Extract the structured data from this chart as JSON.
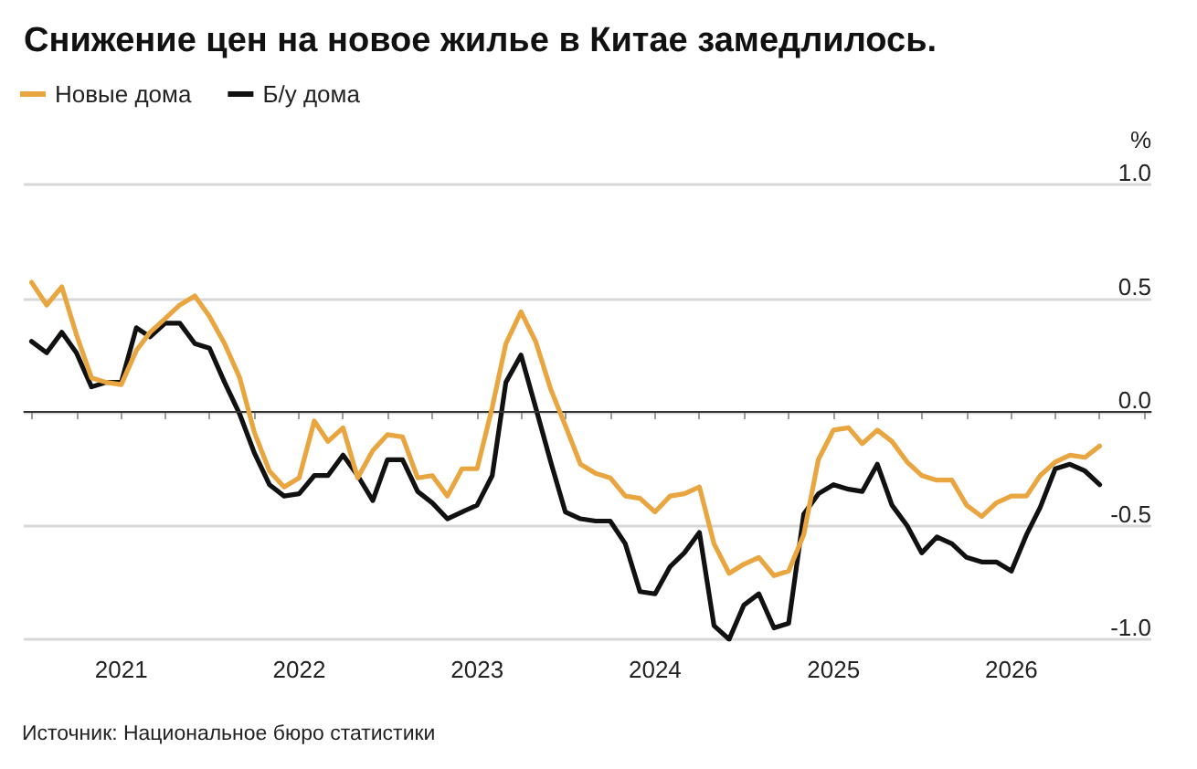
{
  "chart_data": {
    "type": "line",
    "title": "Снижение цен на новое жилье в Китае замедлилось.",
    "ylabel": "%",
    "x": [
      "2020-07",
      "2020-08",
      "2020-09",
      "2020-10",
      "2020-11",
      "2020-12",
      "2021-01",
      "2021-02",
      "2021-03",
      "2021-04",
      "2021-05",
      "2021-06",
      "2021-07",
      "2021-08",
      "2021-09",
      "2021-10",
      "2021-11",
      "2021-12",
      "2022-01",
      "2022-02",
      "2022-03",
      "2022-04",
      "2022-05",
      "2022-06",
      "2022-07",
      "2022-08",
      "2022-09",
      "2022-10",
      "2022-11",
      "2022-12",
      "2023-01",
      "2023-02",
      "2023-03",
      "2023-04",
      "2023-05",
      "2023-06",
      "2023-07",
      "2023-08",
      "2023-09",
      "2023-10",
      "2023-11",
      "2023-12",
      "2024-01",
      "2024-02",
      "2024-03",
      "2024-04",
      "2024-05",
      "2024-06",
      "2024-07",
      "2024-08",
      "2024-09",
      "2024-10",
      "2024-11",
      "2024-12",
      "2025-01",
      "2025-02",
      "2025-03",
      "2025-04",
      "2025-05",
      "2025-06",
      "2025-07",
      "2025-08",
      "2025-09",
      "2025-10",
      "2025-11",
      "2025-12",
      "2026-01",
      "2026-02",
      "2026-03",
      "2026-04",
      "2026-05",
      "2026-06",
      "2026-07"
    ],
    "series": [
      {
        "name": "Новые дома",
        "color": "#e9a640",
        "values": [
          0.57,
          0.47,
          0.55,
          0.34,
          0.15,
          0.13,
          0.12,
          0.27,
          0.35,
          0.41,
          0.47,
          0.51,
          0.42,
          0.3,
          0.15,
          -0.09,
          -0.26,
          -0.33,
          -0.29,
          -0.04,
          -0.13,
          -0.07,
          -0.29,
          -0.17,
          -0.1,
          -0.11,
          -0.29,
          -0.28,
          -0.37,
          -0.25,
          -0.25,
          0.02,
          0.3,
          0.44,
          0.31,
          0.1,
          -0.06,
          -0.23,
          -0.27,
          -0.29,
          -0.37,
          -0.38,
          -0.44,
          -0.37,
          -0.36,
          -0.33,
          -0.58,
          -0.71,
          -0.67,
          -0.64,
          -0.72,
          -0.7,
          -0.54,
          -0.21,
          -0.08,
          -0.07,
          -0.14,
          -0.08,
          -0.13,
          -0.22,
          -0.28,
          -0.3,
          -0.3,
          -0.41,
          -0.46,
          -0.4,
          -0.37,
          -0.37,
          -0.28,
          -0.22,
          -0.19,
          -0.2,
          -0.15
        ]
      },
      {
        "name": "Б/у дома",
        "color": "#111111",
        "values": [
          0.31,
          0.26,
          0.35,
          0.26,
          0.11,
          0.13,
          0.13,
          0.37,
          0.33,
          0.39,
          0.39,
          0.3,
          0.28,
          0.13,
          -0.01,
          -0.18,
          -0.32,
          -0.37,
          -0.36,
          -0.28,
          -0.28,
          -0.19,
          -0.28,
          -0.39,
          -0.21,
          -0.21,
          -0.35,
          -0.4,
          -0.47,
          -0.44,
          -0.41,
          -0.28,
          0.13,
          0.25,
          0.02,
          -0.22,
          -0.44,
          -0.47,
          -0.48,
          -0.48,
          -0.58,
          -0.79,
          -0.8,
          -0.68,
          -0.62,
          -0.53,
          -0.94,
          -1.0,
          -0.85,
          -0.8,
          -0.95,
          -0.93,
          -0.45,
          -0.36,
          -0.32,
          -0.34,
          -0.35,
          -0.23,
          -0.41,
          -0.5,
          -0.62,
          -0.55,
          -0.58,
          -0.64,
          -0.66,
          -0.66,
          -0.7,
          -0.54,
          -0.42,
          -0.25,
          -0.23,
          -0.26,
          -0.32
        ]
      }
    ],
    "xlim": [
      "2020-06-15",
      "2026-10-15"
    ],
    "xticks": [
      {
        "value": "2020-07",
        "label": null
      },
      {
        "value": "2020-10",
        "label": null
      },
      {
        "value": "2021-01",
        "label": "2021"
      },
      {
        "value": "2021-04",
        "label": null
      },
      {
        "value": "2021-07",
        "label": null
      },
      {
        "value": "2021-10",
        "label": null
      },
      {
        "value": "2022-01",
        "label": "2022"
      },
      {
        "value": "2022-04",
        "label": null
      },
      {
        "value": "2022-07",
        "label": null
      },
      {
        "value": "2022-10",
        "label": null
      },
      {
        "value": "2023-01",
        "label": "2023"
      },
      {
        "value": "2023-04",
        "label": null
      },
      {
        "value": "2023-07",
        "label": null
      },
      {
        "value": "2023-10",
        "label": null
      },
      {
        "value": "2024-01",
        "label": "2024"
      },
      {
        "value": "2024-04",
        "label": null
      },
      {
        "value": "2024-07",
        "label": null
      },
      {
        "value": "2024-10",
        "label": null
      },
      {
        "value": "2025-01",
        "label": "2025"
      },
      {
        "value": "2025-04",
        "label": null
      },
      {
        "value": "2025-07",
        "label": null
      },
      {
        "value": "2025-10",
        "label": null
      },
      {
        "value": "2026-01",
        "label": "2026"
      },
      {
        "value": "2026-04",
        "label": null
      },
      {
        "value": "2026-07",
        "label": null
      },
      {
        "value": "2026-10",
        "label": null
      }
    ],
    "ylim": [
      -1.0,
      1.0
    ],
    "yticks": [
      {
        "value": -1.0,
        "label": "-1.0"
      },
      {
        "value": -0.5,
        "label": "-0.5"
      },
      {
        "value": 0,
        "label": "0.0"
      },
      {
        "value": 0.5,
        "label": "0.5"
      },
      {
        "value": 1.0,
        "label": "1.0"
      }
    ],
    "ref_lines": [
      {
        "axis": "y",
        "value": 0,
        "color": "#333333"
      }
    ],
    "grid": "y",
    "legend": "top left",
    "marker": "none",
    "line_style": "solid",
    "annotations": [
      "Источник: Национальное бюро статистики"
    ]
  }
}
